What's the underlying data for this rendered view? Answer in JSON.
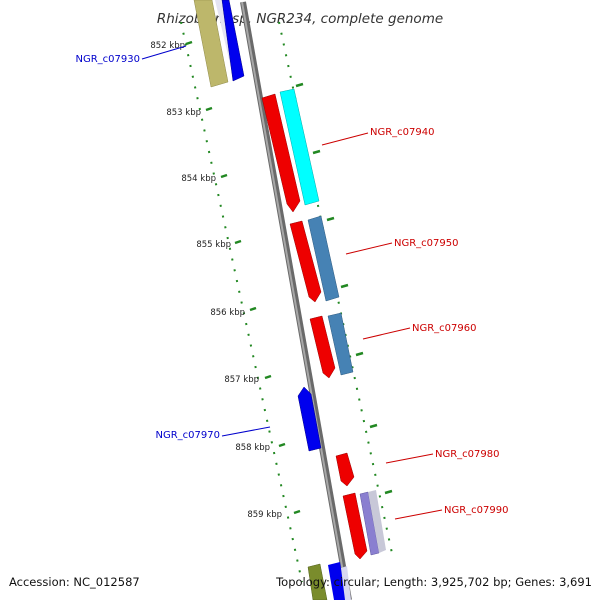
{
  "title": "Rhizobium sp. NGR234, complete genome",
  "accession": "Accession: NC_012587",
  "topology": "Topology: circular; Length: 3,925,702 bp; Genes: 3,691",
  "ticks": [
    "852 kbp",
    "853 kbp",
    "854 kbp",
    "855 kbp",
    "856 kbp",
    "857 kbp",
    "858 kbp",
    "859 kbp"
  ],
  "genes": [
    {
      "label": "NGR_c07930",
      "strand": "minus",
      "color": "#0000cc"
    },
    {
      "label": "NGR_c07940",
      "strand": "plus",
      "color": "#cc0000"
    },
    {
      "label": "NGR_c07950",
      "strand": "plus",
      "color": "#cc0000"
    },
    {
      "label": "NGR_c07960",
      "strand": "plus",
      "color": "#cc0000"
    },
    {
      "label": "NGR_c07970",
      "strand": "minus",
      "color": "#0000cc"
    },
    {
      "label": "NGR_c07980",
      "strand": "plus",
      "color": "#cc0000"
    },
    {
      "label": "NGR_c07990",
      "strand": "plus",
      "color": "#cc0000"
    }
  ],
  "colors": {
    "backbone": "#888888",
    "tick": "#228822",
    "cds": "#ff0000",
    "cds_minus": "#0000ff",
    "cyan": "#00ffff",
    "steelblue": "#4682b4",
    "khaki": "#bdb76b",
    "lavender": "#8a7fd0",
    "grey": "#c8c8c8",
    "olive": "#7a8c2c"
  }
}
